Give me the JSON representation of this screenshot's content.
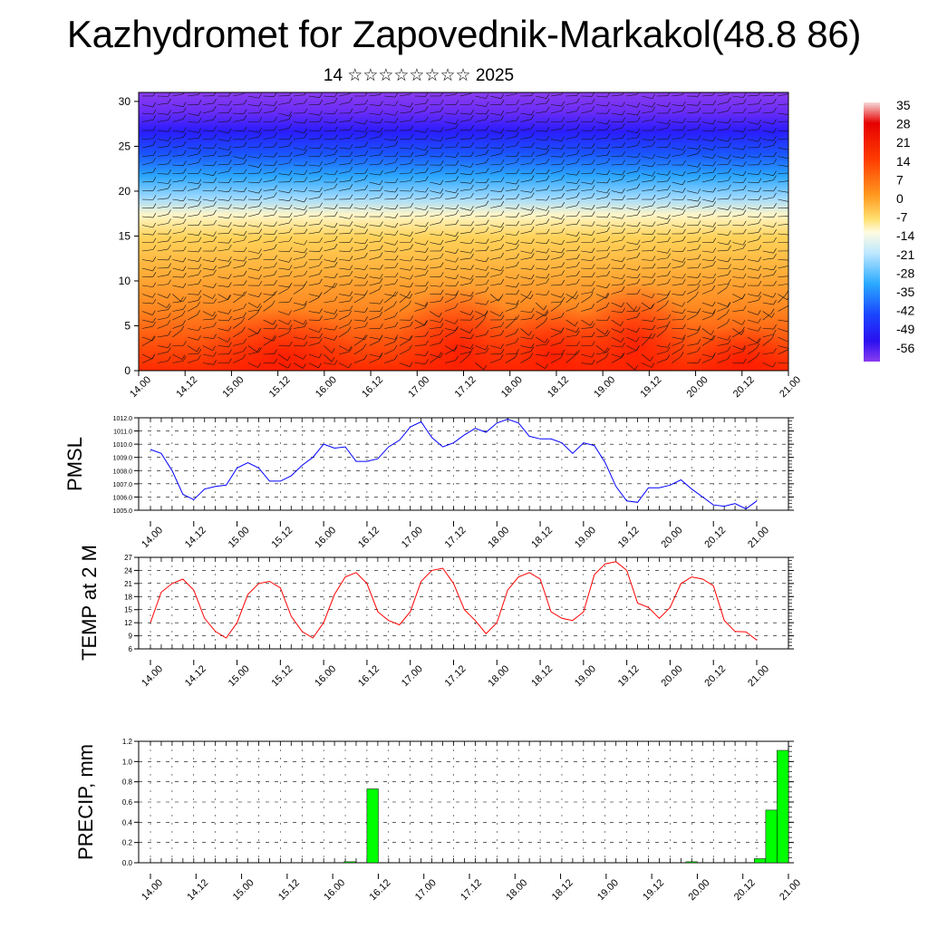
{
  "header": {
    "title": "Kazhydromet for Zapovednik-Markakol(48.8 86)",
    "subtitle": "14 ☆☆☆☆☆☆☆☆ 2025"
  },
  "time_labels": [
    "14.00",
    "14.12",
    "15.00",
    "15.12",
    "16.00",
    "16.12",
    "17.00",
    "17.12",
    "18.00",
    "18.12",
    "19.00",
    "19.12",
    "20.00",
    "20.12",
    "21.00"
  ],
  "chart_data": [
    {
      "type": "heatmap",
      "name": "vertical-section",
      "y_ticks": [
        "0",
        "5",
        "10",
        "15",
        "20",
        "25",
        "30"
      ],
      "ylim": [
        0,
        31
      ],
      "colorbar_labels": [
        "35",
        "28",
        "21",
        "14",
        "7",
        "0",
        "-7",
        "-14",
        "-21",
        "-28",
        "-35",
        "-42",
        "-49",
        "-56"
      ],
      "colors": {
        "warm": "#ff2a00",
        "mid": "#ffd35a",
        "pale": "#d8f0ff",
        "cold": "#1a2cff",
        "top": "#8a3cf0"
      }
    },
    {
      "type": "line",
      "name": "pmsl",
      "ylabel": "PMSL",
      "y_ticks": [
        "1005.0",
        "1006.0",
        "1007.0",
        "1008.0",
        "1009.0",
        "1010.0",
        "1011.0",
        "1012.0"
      ],
      "ylim": [
        1005,
        1012
      ],
      "color": "#0000ff",
      "values": [
        1009.6,
        1009.3,
        1008.0,
        1006.2,
        1005.8,
        1006.6,
        1006.8,
        1006.9,
        1008.2,
        1008.6,
        1008.2,
        1007.2,
        1007.2,
        1007.6,
        1008.4,
        1009.0,
        1010.0,
        1009.7,
        1009.8,
        1008.7,
        1008.7,
        1008.9,
        1009.8,
        1010.3,
        1011.3,
        1011.7,
        1010.5,
        1009.8,
        1010.1,
        1010.7,
        1011.2,
        1010.9,
        1011.6,
        1011.9,
        1011.6,
        1010.6,
        1010.4,
        1010.4,
        1010.1,
        1009.3,
        1010.1,
        1009.9,
        1008.6,
        1006.8,
        1005.7,
        1005.6,
        1006.7,
        1006.7,
        1006.9,
        1007.3,
        1006.6,
        1006.0,
        1005.4,
        1005.3,
        1005.5,
        1005.1,
        1005.7
      ]
    },
    {
      "type": "line",
      "name": "temp-2m",
      "ylabel": "TEMP at 2 M",
      "y_ticks": [
        "6",
        "9",
        "12",
        "15",
        "18",
        "21",
        "24",
        "27"
      ],
      "ylim": [
        6,
        27
      ],
      "color": "#ff0000",
      "values": [
        12,
        19,
        21,
        22,
        19.5,
        13,
        10,
        8.5,
        12,
        18.5,
        21,
        21.5,
        20,
        13.5,
        10,
        8.5,
        12,
        18.5,
        22.5,
        23.5,
        21,
        14.5,
        12.5,
        11.5,
        14.5,
        21.5,
        24,
        24.5,
        21,
        15,
        12.5,
        9.5,
        12,
        19.5,
        22.5,
        23.5,
        22,
        14.5,
        13,
        12.5,
        14.5,
        23,
        25.5,
        26,
        24,
        16.5,
        15.5,
        13,
        15.5,
        21,
        22.5,
        22,
        20.5,
        12.5,
        10,
        9.9,
        8
      ]
    },
    {
      "type": "bar",
      "name": "precip",
      "ylabel": "PRECIP, mm",
      "y_ticks": [
        "0.0",
        "0.2",
        "0.4",
        "0.6",
        "0.8",
        "1.0",
        "1.2"
      ],
      "ylim": [
        0,
        1.2
      ],
      "color": "#00ff00",
      "bars": [
        {
          "t": 17.5,
          "value": 0.01
        },
        {
          "t": 19.5,
          "value": 0.73
        },
        {
          "t": 47.5,
          "value": 0.01
        },
        {
          "t": 53.5,
          "value": 0.04
        },
        {
          "t": 54.5,
          "value": 0.52
        },
        {
          "t": 55.5,
          "value": 1.11
        }
      ]
    }
  ]
}
